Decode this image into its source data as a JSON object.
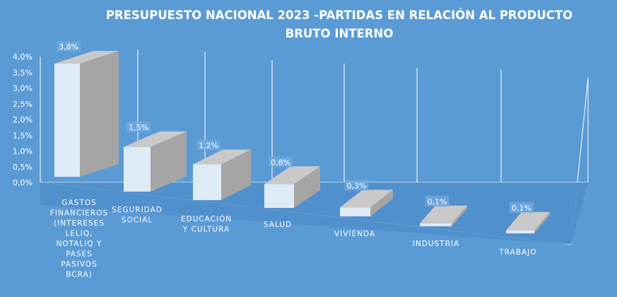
{
  "chart_data": {
    "type": "bar",
    "title_lines": [
      "PRESUPUESTO NACIONAL 2023 -PARTIDAS EN RELACIÓN AL PRODUCTO",
      "BRUTO INTERNO"
    ],
    "categories": [
      [
        "GASTOS",
        "FINANCIEROS",
        "(INTERESES",
        "LELIQ,",
        "NOTALIQ Y",
        "PASES",
        "PASIVOS",
        "BCRA)"
      ],
      [
        "SEGURIDAD",
        "SOCIAL"
      ],
      [
        "EDUCACIÓN",
        "Y CULTURA"
      ],
      [
        "SALUD"
      ],
      [
        "VIVIENDA"
      ],
      [
        "INDUSTRIA"
      ],
      [
        "TRABAJO"
      ]
    ],
    "values": [
      3.8,
      1.5,
      1.2,
      0.8,
      0.3,
      0.1,
      0.1
    ],
    "data_labels": [
      "3,8%",
      "1,5%",
      "1,2%",
      "0,8%",
      "0,3%",
      "0,1%",
      "0,1%"
    ],
    "y_ticks": [
      "0,0%",
      "0,5%",
      "1,0%",
      "1,5%",
      "2,0%",
      "2,5%",
      "3,0%",
      "3,5%",
      "4,0%"
    ],
    "ylim": [
      0,
      4.0
    ],
    "grid": true,
    "colors": {
      "background": "#5b9bd5",
      "bar_front": "#deebf7",
      "bar_side": "#a5a5a5",
      "bar_top": "#c9c9c9",
      "floor": "#4f8fcc",
      "grid": "#ffffff",
      "text": "#ffffff"
    }
  }
}
